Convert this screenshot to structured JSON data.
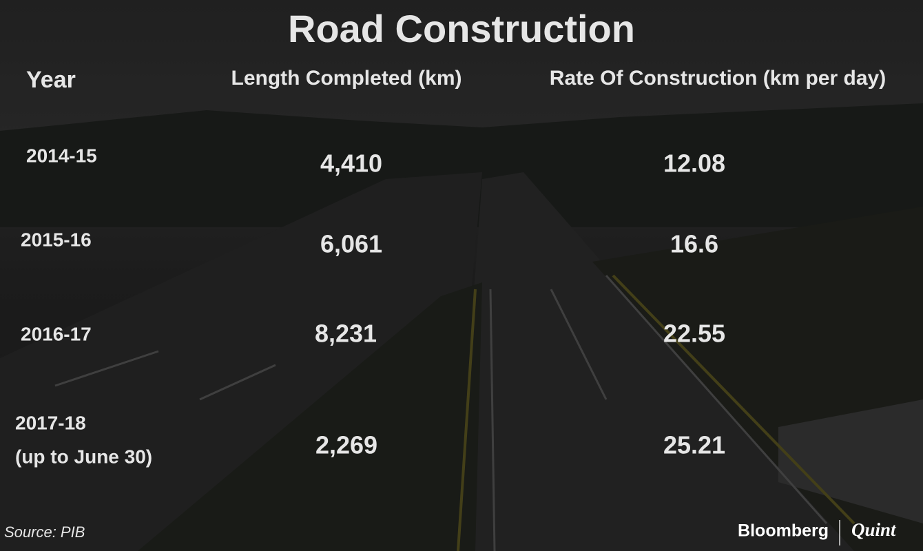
{
  "header": {
    "title": "Road Construction"
  },
  "table": {
    "columns": [
      "Year",
      "Length Completed (km)",
      "Rate Of Construction (km per day)"
    ],
    "rows": [
      {
        "year": "2014-15",
        "length": "4,410",
        "rate": "12.08"
      },
      {
        "year": "2015-16",
        "length": "6,061",
        "rate": "16.6"
      },
      {
        "year": "2016-17",
        "length": "8,231",
        "rate": "22.55"
      },
      {
        "year": "2017-18",
        "note": "(up to June 30)",
        "length": "2,269",
        "rate": "25.21"
      }
    ]
  },
  "footer": {
    "source": "Source: PIB",
    "brand": [
      "Bloomberg",
      "Quint"
    ]
  }
}
